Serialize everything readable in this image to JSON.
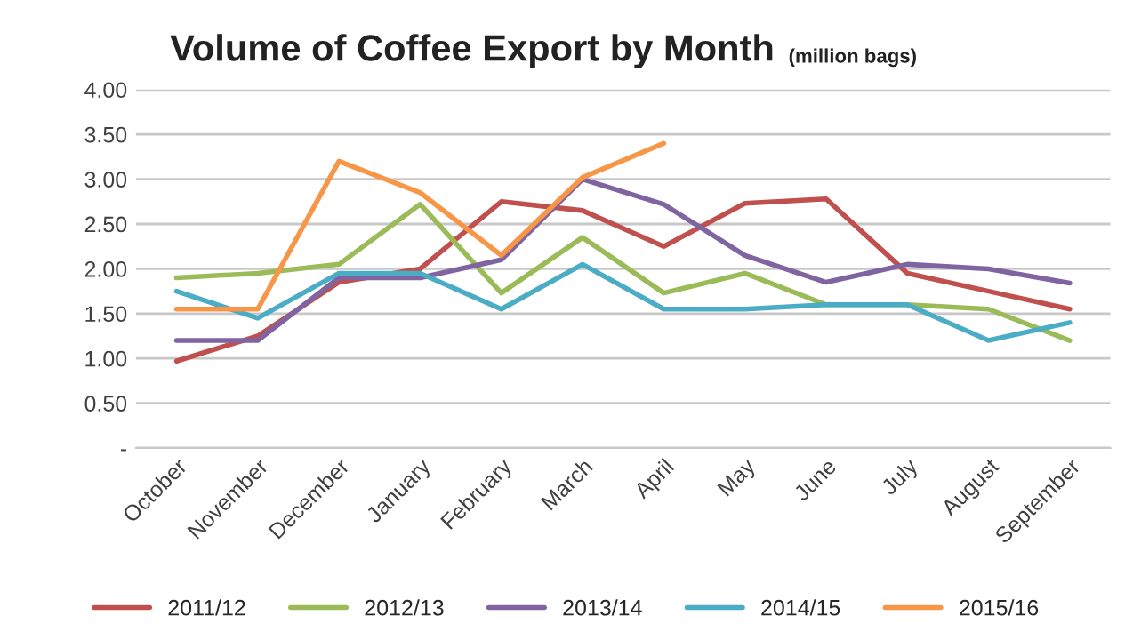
{
  "chart_data": {
    "type": "line",
    "title": "Volume of Coffee Export by Month",
    "subtitle": "(million bags)",
    "categories": [
      "October",
      "November",
      "December",
      "January",
      "February",
      "March",
      "April",
      "May",
      "June",
      "July",
      "August",
      "September"
    ],
    "series": [
      {
        "name": "2011/12",
        "color": "#c0504d",
        "values": [
          0.97,
          1.25,
          1.85,
          2.0,
          2.75,
          2.65,
          2.25,
          2.73,
          2.78,
          1.95,
          1.75,
          1.55
        ]
      },
      {
        "name": "2012/13",
        "color": "#9bbb59",
        "values": [
          1.9,
          1.95,
          2.05,
          2.72,
          1.73,
          2.35,
          1.73,
          1.95,
          1.6,
          1.6,
          1.55,
          1.2
        ]
      },
      {
        "name": "2013/14",
        "color": "#8064a2",
        "values": [
          1.2,
          1.2,
          1.9,
          1.9,
          2.1,
          3.0,
          2.72,
          2.15,
          1.85,
          2.05,
          2.0,
          1.84
        ]
      },
      {
        "name": "2014/15",
        "color": "#4bacc6",
        "values": [
          1.75,
          1.45,
          1.95,
          1.95,
          1.55,
          2.05,
          1.55,
          1.55,
          1.6,
          1.6,
          1.2,
          1.4
        ]
      },
      {
        "name": "2015/16",
        "color": "#f79646",
        "values": [
          1.55,
          1.55,
          3.2,
          2.85,
          2.15,
          3.02,
          3.4,
          null,
          null,
          null,
          null,
          null
        ]
      }
    ],
    "ylim": [
      0,
      4
    ],
    "yticks": [
      {
        "value": 0,
        "label": "-"
      },
      {
        "value": 0.5,
        "label": "0.50"
      },
      {
        "value": 1,
        "label": "1.00"
      },
      {
        "value": 1.5,
        "label": "1.50"
      },
      {
        "value": 2,
        "label": "2.00"
      },
      {
        "value": 2.5,
        "label": "2.50"
      },
      {
        "value": 3,
        "label": "3.00"
      },
      {
        "value": 3.5,
        "label": "3.50"
      },
      {
        "value": 4,
        "label": "4.00"
      }
    ],
    "grid": "y",
    "legend": "bottom",
    "marker": "none",
    "line_style": "solid"
  }
}
